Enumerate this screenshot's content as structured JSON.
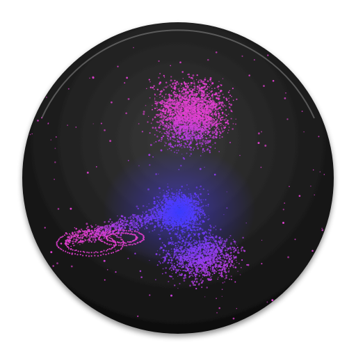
{
  "icon": {
    "name": "particle-galaxy-app-icon",
    "colors": {
      "background": "#ffffff",
      "disc_center": "#3a3a3a",
      "disc_edge": "#0d0d0d",
      "rim_highlight": "#8a8a8a",
      "particle_pink": "#e040d0",
      "particle_violet": "#8a3cf0",
      "particle_blue": "#3a3cff"
    }
  }
}
